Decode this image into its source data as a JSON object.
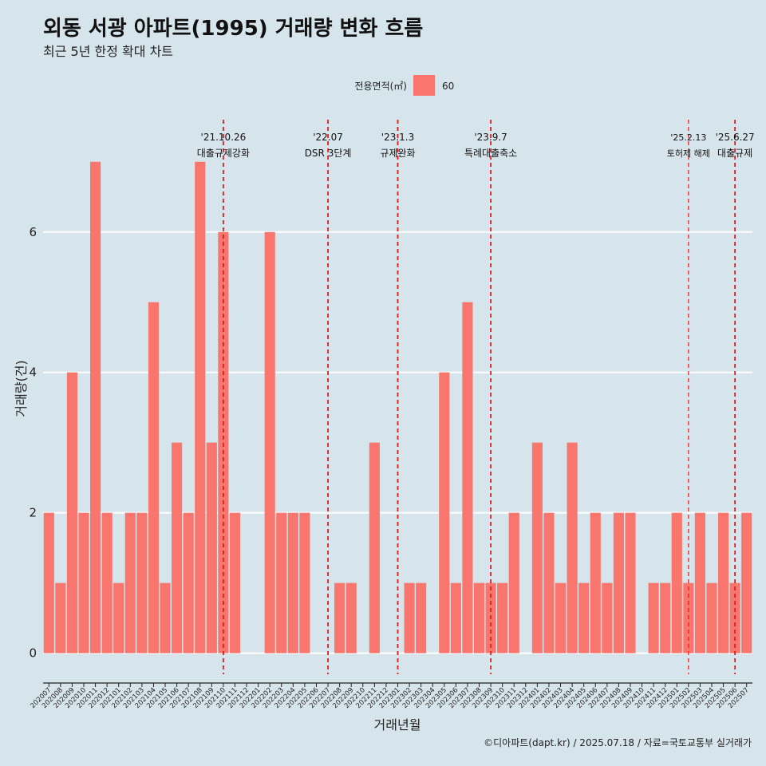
{
  "title": "외동 서광 아파트(1995) 거래량 변화 흐름",
  "subtitle": "최근 5년 한정 확대 차트",
  "caption": "©디아파트(dapt.kr) / 2025.07.18 / 자료=국토교통부 실거래가",
  "legend": {
    "title": "전용면적(㎡)",
    "entries": [
      {
        "label": "60",
        "color": "#f8766d"
      }
    ]
  },
  "colors": {
    "background": "#d6e4eb",
    "bar": "#f8766d",
    "event_line": "#e41a1c",
    "grid": "#ffffff"
  },
  "chart_data": {
    "type": "bar",
    "title": "외동 서광 아파트(1995) 거래량 변화 흐름",
    "xlabel": "거래년월",
    "ylabel": "거래량(건)",
    "ylim": [
      -0.3,
      7.6
    ],
    "yticks": [
      0,
      2,
      4,
      6
    ],
    "grid": true,
    "legend_position": "top",
    "categories": [
      "202007",
      "202008",
      "202009",
      "202010",
      "202011",
      "202012",
      "202101",
      "202102",
      "202103",
      "202104",
      "202105",
      "202106",
      "202107",
      "202108",
      "202109",
      "202110",
      "202111",
      "202112",
      "202201",
      "202202",
      "202203",
      "202204",
      "202205",
      "202206",
      "202207",
      "202208",
      "202209",
      "202210",
      "202211",
      "202212",
      "202301",
      "202302",
      "202303",
      "202304",
      "202305",
      "202306",
      "202307",
      "202308",
      "202309",
      "202310",
      "202311",
      "202312",
      "202401",
      "202402",
      "202403",
      "202404",
      "202405",
      "202406",
      "202407",
      "202408",
      "202409",
      "202410",
      "202411",
      "202412",
      "202501",
      "202502",
      "202503",
      "202504",
      "202505",
      "202506",
      "202507"
    ],
    "series": [
      {
        "name": "60",
        "color": "#f8766d",
        "values": [
          2,
          1,
          4,
          2,
          7,
          2,
          1,
          2,
          2,
          5,
          1,
          3,
          2,
          7,
          3,
          6,
          2,
          0,
          0,
          6,
          2,
          2,
          2,
          0,
          0,
          1,
          1,
          0,
          3,
          0,
          0,
          1,
          1,
          0,
          4,
          1,
          5,
          1,
          1,
          1,
          2,
          0,
          3,
          2,
          1,
          3,
          1,
          2,
          1,
          2,
          2,
          0,
          1,
          1,
          2,
          1,
          2,
          1,
          2,
          1,
          2
        ]
      }
    ],
    "events": [
      {
        "category": "202110",
        "date_label": "'21.10.26",
        "text": "대출규제강화",
        "style": "dashed"
      },
      {
        "category": "202207",
        "date_label": "'22.07",
        "text": "DSR 3단계",
        "style": "dashed"
      },
      {
        "category": "202301",
        "date_label": "'23.1.3",
        "text": "규제완화",
        "style": "dashed"
      },
      {
        "category": "202309",
        "date_label": "'23.9.7",
        "text": "특례대출축소",
        "style": "dashed"
      },
      {
        "category": "202502",
        "date_label": "'25.2.13",
        "text": "토허제 해제",
        "style": "dashed-thin"
      },
      {
        "category": "202506",
        "date_label": "'25.6.27",
        "text": "대출규제",
        "style": "dashed"
      }
    ]
  }
}
